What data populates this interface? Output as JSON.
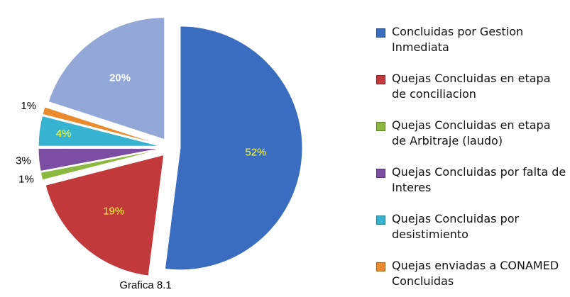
{
  "chart_data": {
    "type": "pie",
    "caption": "Grafica 8.1",
    "categories": [
      "Concluidas por Gestion Inmediata",
      "Quejas Concluidas en etapa de conciliacion",
      "Quejas Concluidas en etapa de Arbitraje (laudo)",
      "Quejas Concluidas por falta de Interes",
      "Quejas Concluidas por desistimiento",
      "Quejas enviadas a CONAMED Concluidas",
      null
    ],
    "values": [
      52,
      19,
      1,
      3,
      4,
      1,
      20
    ],
    "value_labels": [
      "52%",
      "19%",
      "1%",
      "3%",
      "4%",
      "1%",
      "20%"
    ],
    "colors": [
      "#3a6cc0",
      "#c2393b",
      "#8bb83e",
      "#7b4da3",
      "#35b3d0",
      "#ea8a2c",
      "#93a8d6"
    ],
    "label_colors": [
      "#ffff33",
      "#ffff33",
      "#000000",
      "#000000",
      "#ffff33",
      "#000000",
      "#ffffff"
    ]
  }
}
